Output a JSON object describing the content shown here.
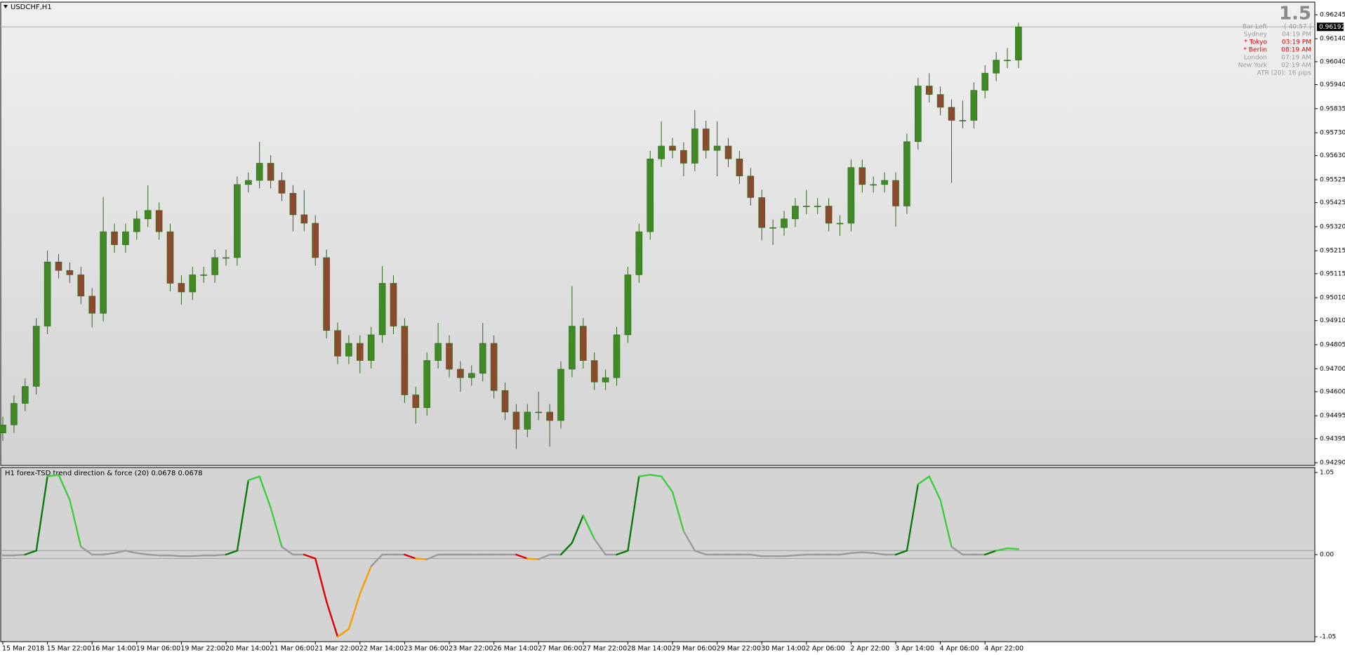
{
  "chart_data": [
    {
      "type": "candlestick",
      "title": "USDCHF,H1",
      "up_color": "#3f8a24",
      "down_color": "#8b4a2b",
      "ylim": [
        0.94278,
        0.96297
      ],
      "yticks": [
        0.96245,
        {
          "value": 0.9614,
          "label": "0.96140"
        },
        {
          "value": 0.9604,
          "label": "0.96040"
        },
        {
          "value": 0.9594,
          "label": "0.95940"
        },
        0.95835,
        {
          "value": 0.9573,
          "label": "0.95730"
        },
        {
          "value": 0.9563,
          "label": "0.95630"
        },
        0.95525,
        0.95425,
        {
          "value": 0.9532,
          "label": "0.95320"
        },
        0.95215,
        0.95115,
        {
          "value": 0.9501,
          "label": "0.95010"
        },
        {
          "value": 0.9491,
          "label": "0.94910"
        },
        0.94805,
        {
          "value": 0.947,
          "label": "0.94700"
        },
        {
          "value": 0.946,
          "label": "0.94600"
        },
        0.94495,
        0.94395,
        {
          "value": 0.9429,
          "label": "0.94290"
        }
      ],
      "current_price": 0.96192,
      "open": [
        0.9442,
        0.94455,
        0.94549,
        0.94623,
        0.94886,
        0.95166,
        0.95129,
        0.9511,
        0.95017,
        0.94942,
        0.95298,
        0.95241,
        0.95298,
        0.95354,
        0.95391,
        0.95298,
        0.95073,
        0.95035,
        0.9511,
        0.9511,
        0.95185,
        0.95185,
        0.95504,
        0.95522,
        0.95597,
        0.95522,
        0.95466,
        0.95372,
        0.95335,
        0.95185,
        0.94867,
        0.94755,
        0.94811,
        0.94736,
        0.94848,
        0.95073,
        0.94886,
        0.94586,
        0.9453,
        0.94736,
        0.94811,
        0.94698,
        0.94661,
        0.9468,
        0.94811,
        0.94605,
        0.94511,
        0.94436,
        0.94511,
        0.94511,
        0.94474,
        0.94698,
        0.94886,
        0.94736,
        0.94642,
        0.94661,
        0.94848,
        0.9511,
        0.95298,
        0.95616,
        0.95672,
        0.95653,
        0.95597,
        0.95747,
        0.95653,
        0.95672,
        0.95616,
        0.95541,
        0.95447,
        0.95316,
        0.95316,
        0.95354,
        0.9541,
        0.9541,
        0.9541,
        0.95335,
        0.95335,
        0.95578,
        0.95504,
        0.95504,
        0.95522,
        0.9541,
        0.95691,
        0.95934,
        0.95897,
        0.95841,
        0.95784,
        0.95784,
        0.95915,
        0.9599,
        0.96047,
        0.96047
      ],
      "high": [
        0.9449,
        0.94584,
        0.94658,
        0.94921,
        0.95216,
        0.95201,
        0.95164,
        0.95145,
        0.95052,
        0.9545,
        0.95333,
        0.95333,
        0.95389,
        0.955,
        0.95426,
        0.95333,
        0.95108,
        0.95145,
        0.95145,
        0.9522,
        0.9522,
        0.95539,
        0.95557,
        0.9569,
        0.95632,
        0.95557,
        0.95501,
        0.9548,
        0.9537,
        0.9522,
        0.94902,
        0.94846,
        0.94846,
        0.94883,
        0.95148,
        0.95108,
        0.94921,
        0.94621,
        0.94771,
        0.949,
        0.94846,
        0.94733,
        0.94715,
        0.949,
        0.94846,
        0.9464,
        0.94546,
        0.94546,
        0.946,
        0.94546,
        0.94733,
        0.9506,
        0.94921,
        0.94771,
        0.94696,
        0.94883,
        0.95145,
        0.95333,
        0.95651,
        0.9578,
        0.95707,
        0.95688,
        0.95829,
        0.95782,
        0.9578,
        0.95707,
        0.95651,
        0.95576,
        0.95482,
        0.95351,
        0.95389,
        0.95445,
        0.9548,
        0.95445,
        0.95445,
        0.9537,
        0.95613,
        0.95613,
        0.95539,
        0.95557,
        0.95557,
        0.95726,
        0.95969,
        0.9599,
        0.95932,
        0.95876,
        0.9587,
        0.9595,
        0.96025,
        0.96082,
        0.961,
        0.9621
      ],
      "low": [
        0.94385,
        0.9442,
        0.94514,
        0.94588,
        0.94851,
        0.95094,
        0.95075,
        0.94982,
        0.9488,
        0.94907,
        0.95206,
        0.95206,
        0.95263,
        0.95319,
        0.95263,
        0.95038,
        0.9498,
        0.95,
        0.95075,
        0.95075,
        0.9515,
        0.9515,
        0.95469,
        0.95487,
        0.95487,
        0.95431,
        0.953,
        0.953,
        0.9515,
        0.94832,
        0.9472,
        0.9472,
        0.9468,
        0.94701,
        0.94813,
        0.94851,
        0.94551,
        0.9446,
        0.94495,
        0.94701,
        0.94663,
        0.946,
        0.94626,
        0.94645,
        0.9457,
        0.94476,
        0.9435,
        0.94401,
        0.94476,
        0.9436,
        0.94439,
        0.94663,
        0.94701,
        0.94607,
        0.94607,
        0.94626,
        0.94813,
        0.95075,
        0.95263,
        0.95581,
        0.95618,
        0.9554,
        0.95562,
        0.95618,
        0.9554,
        0.95581,
        0.95506,
        0.95412,
        0.9526,
        0.9524,
        0.95281,
        0.95319,
        0.95375,
        0.95375,
        0.953,
        0.9528,
        0.953,
        0.95469,
        0.95469,
        0.95469,
        0.9532,
        0.95375,
        0.95656,
        0.95862,
        0.95806,
        0.95511,
        0.95749,
        0.95749,
        0.9588,
        0.95955,
        0.96012,
        0.96012
      ],
      "close": [
        0.94455,
        0.94549,
        0.94623,
        0.94886,
        0.95166,
        0.95129,
        0.9511,
        0.95017,
        0.94942,
        0.95298,
        0.95241,
        0.95298,
        0.95354,
        0.95391,
        0.95298,
        0.95073,
        0.95035,
        0.9511,
        0.9511,
        0.95185,
        0.95185,
        0.95504,
        0.95522,
        0.95597,
        0.95522,
        0.95466,
        0.95372,
        0.95335,
        0.95185,
        0.94867,
        0.94755,
        0.94811,
        0.94736,
        0.94848,
        0.95073,
        0.94886,
        0.94586,
        0.9453,
        0.94736,
        0.94811,
        0.94698,
        0.94661,
        0.9468,
        0.94811,
        0.94605,
        0.94511,
        0.94436,
        0.94511,
        0.94511,
        0.94474,
        0.94698,
        0.94886,
        0.94736,
        0.94642,
        0.94661,
        0.94848,
        0.9511,
        0.95298,
        0.95616,
        0.95672,
        0.95653,
        0.95597,
        0.95747,
        0.95653,
        0.95672,
        0.95616,
        0.95541,
        0.95447,
        0.95316,
        0.95316,
        0.95354,
        0.9541,
        0.9541,
        0.9541,
        0.95335,
        0.95335,
        0.95578,
        0.95504,
        0.95504,
        0.95522,
        0.9541,
        0.95691,
        0.95934,
        0.95897,
        0.95841,
        0.95784,
        0.95784,
        0.95915,
        0.9599,
        0.96047,
        0.96047,
        0.96192
      ]
    },
    {
      "type": "line",
      "title": "H1 forex-TSD trend direction & force (20) 0.0678 0.0678",
      "ylim": [
        -1.05,
        1.05
      ],
      "yticks": [
        1.05,
        {
          "value": 0,
          "label": "0.00"
        },
        -1.05
      ],
      "levels": [
        0.05,
        -0.05
      ],
      "values": [
        -0.01,
        -0.01,
        0,
        0.05,
        1,
        1.02,
        0.7,
        0.1,
        0,
        0,
        0.02,
        0.05,
        0.02,
        0,
        -0.01,
        -0.01,
        -0.02,
        -0.02,
        -0.01,
        -0.01,
        0,
        0.05,
        0.95,
        1,
        0.6,
        0.1,
        0,
        0,
        -0.05,
        -0.6,
        -1.05,
        -0.95,
        -0.5,
        -0.15,
        0,
        0,
        0,
        -0.05,
        -0.06,
        0,
        0,
        0,
        0,
        0,
        0,
        0,
        0,
        -0.05,
        -0.06,
        0,
        0,
        0.15,
        0.5,
        0.2,
        0,
        0,
        0.05,
        1,
        1.02,
        1,
        0.8,
        0.3,
        0.05,
        0,
        0,
        0,
        0,
        0,
        -0.02,
        -0.02,
        -0.02,
        -0.01,
        0,
        0,
        0,
        0,
        0.02,
        0.03,
        0.02,
        0,
        0,
        0.05,
        0.9,
        1,
        0.7,
        0.1,
        0,
        0,
        0,
        0.05,
        0.08,
        0.07
      ],
      "colors": [
        "#9a9a9a",
        "#9a9a9a",
        "#9a9a9a",
        "#0b7a0b",
        "#0b7a0b",
        "#3ccc3c",
        "#3ccc3c",
        "#3ccc3c",
        "#9a9a9a",
        "#9a9a9a",
        "#9a9a9a",
        "#9a9a9a",
        "#9a9a9a",
        "#9a9a9a",
        "#9a9a9a",
        "#9a9a9a",
        "#9a9a9a",
        "#9a9a9a",
        "#9a9a9a",
        "#9a9a9a",
        "#9a9a9a",
        "#0b7a0b",
        "#0b7a0b",
        "#3ccc3c",
        "#3ccc3c",
        "#3ccc3c",
        "#9a9a9a",
        "#9a9a9a",
        "#e00000",
        "#e00000",
        "#e00000",
        "#f5a000",
        "#f5a000",
        "#f5a000",
        "#9a9a9a",
        "#9a9a9a",
        "#9a9a9a",
        "#e00000",
        "#f5a000",
        "#9a9a9a",
        "#9a9a9a",
        "#9a9a9a",
        "#9a9a9a",
        "#9a9a9a",
        "#9a9a9a",
        "#9a9a9a",
        "#9a9a9a",
        "#e00000",
        "#f5a000",
        "#9a9a9a",
        "#9a9a9a",
        "#0b7a0b",
        "#0b7a0b",
        "#3ccc3c",
        "#9a9a9a",
        "#9a9a9a",
        "#0b7a0b",
        "#0b7a0b",
        "#3ccc3c",
        "#3ccc3c",
        "#3ccc3c",
        "#3ccc3c",
        "#9a9a9a",
        "#9a9a9a",
        "#9a9a9a",
        "#9a9a9a",
        "#9a9a9a",
        "#9a9a9a",
        "#9a9a9a",
        "#9a9a9a",
        "#9a9a9a",
        "#9a9a9a",
        "#9a9a9a",
        "#9a9a9a",
        "#9a9a9a",
        "#9a9a9a",
        "#9a9a9a",
        "#9a9a9a",
        "#9a9a9a",
        "#9a9a9a",
        "#9a9a9a",
        "#0b7a0b",
        "#0b7a0b",
        "#3ccc3c",
        "#3ccc3c",
        "#3ccc3c",
        "#9a9a9a",
        "#9a9a9a",
        "#9a9a9a",
        "#0b7a0b",
        "#3ccc3c",
        "#3ccc3c"
      ]
    }
  ],
  "time_axis": [
    "15 Mar 2018",
    "15 Mar 22:00",
    "16 Mar 14:00",
    "19 Mar 06:00",
    "19 Mar 22:00",
    "20 Mar 14:00",
    "21 Mar 06:00",
    "21 Mar 22:00",
    "22 Mar 14:00",
    "23 Mar 06:00",
    "23 Mar 22:00",
    "26 Mar 14:00",
    "27 Mar 06:00",
    "27 Mar 22:00",
    "28 Mar 14:00",
    "29 Mar 06:00",
    "29 Mar 22:00",
    "30 Mar 14:00",
    "2 Apr 06:00",
    "2 Apr 22:00",
    "3 Apr 14:00",
    "4 Apr 06:00",
    "4 Apr 22:00"
  ],
  "info_panel": {
    "spread": "1.5",
    "rows": [
      {
        "label": "Bar Left",
        "value": "[ 40:57 ]",
        "color": "#9a9a9a"
      },
      {
        "label": "Sydney",
        "value": "04:19 PM",
        "color": "#9a9a9a"
      },
      {
        "label": "* Tokyo",
        "value": "03:19 PM",
        "color": "#e00000"
      },
      {
        "label": "* Berlin",
        "value": "08:19 AM",
        "color": "#e00000"
      },
      {
        "label": "London",
        "value": "07:19 AM",
        "color": "#9a9a9a"
      },
      {
        "label": "New York",
        "value": "02:19 AM",
        "color": "#9a9a9a"
      }
    ],
    "atr": "ATR (20): 16 pips"
  }
}
